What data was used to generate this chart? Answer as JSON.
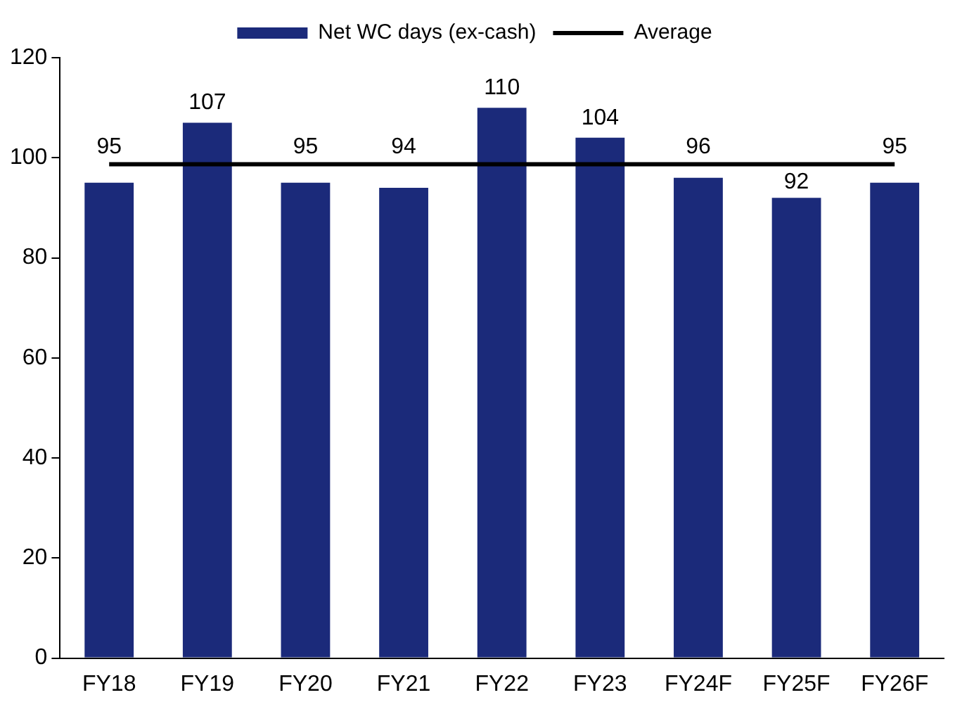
{
  "chart_data": {
    "type": "bar",
    "categories": [
      "FY18",
      "FY19",
      "FY20",
      "FY21",
      "FY22",
      "FY23",
      "FY24F",
      "FY25F",
      "FY26F"
    ],
    "series": [
      {
        "name": "Net WC days (ex-cash)",
        "color": "#1b2a7a",
        "values": [
          95,
          107,
          95,
          94,
          110,
          104,
          96,
          92,
          95
        ],
        "value_labels": [
          "95",
          "107",
          "95",
          "94",
          "110",
          "104",
          "96",
          "92",
          "95"
        ]
      },
      {
        "name": "Average",
        "type": "line",
        "color": "#000000",
        "values": [
          98.7,
          98.7,
          98.7,
          98.7,
          98.7,
          98.7,
          98.7,
          98.7,
          98.7
        ]
      }
    ],
    "ylim": [
      0,
      120
    ],
    "yticks": [
      0,
      20,
      40,
      60,
      80,
      100,
      120
    ],
    "grid": false,
    "legend": "top",
    "marker": "none",
    "line_style": "solid"
  }
}
